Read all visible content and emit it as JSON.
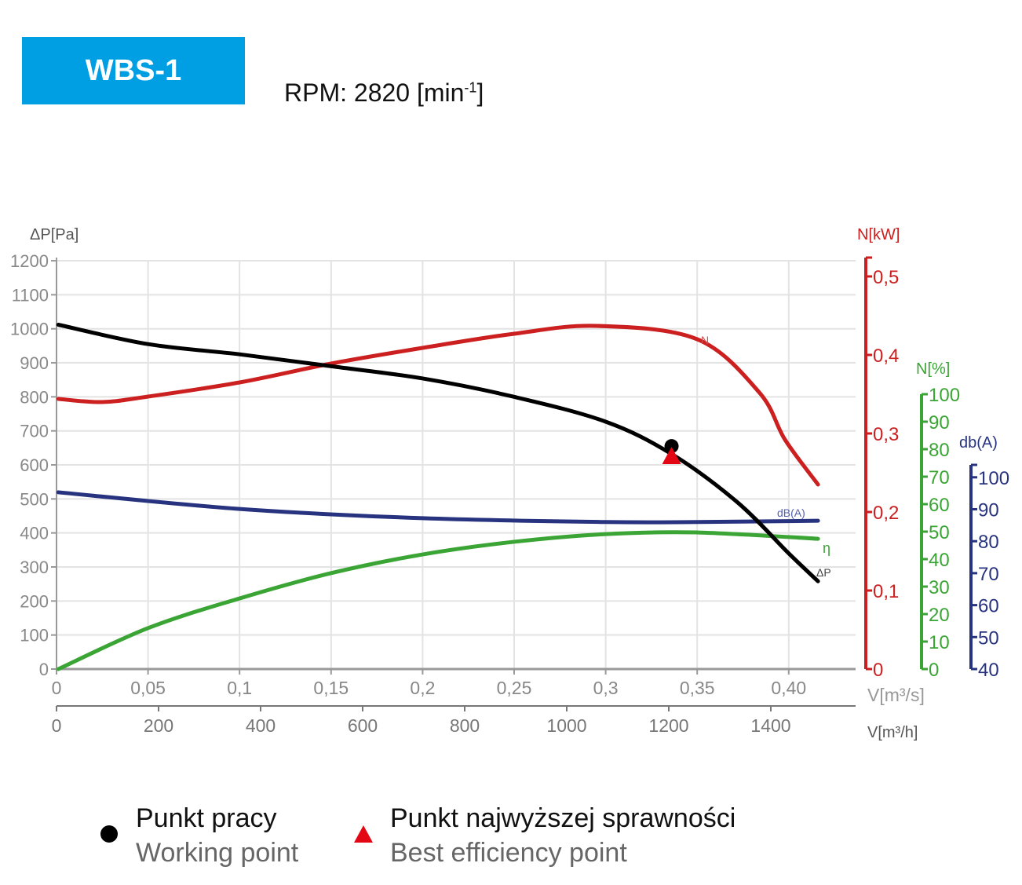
{
  "header": {
    "model": "WBS-1",
    "rpm_label": "RPM: 2820 [min",
    "rpm_sup": "-1",
    "rpm_close": "]"
  },
  "legend": {
    "working_point_pl": "Punkt pracy",
    "working_point_en": "Working point",
    "best_eff_pl": "Punkt najwyższej sprawności",
    "best_eff_en": "Best efficiency point"
  },
  "chart_data": {
    "type": "line",
    "grid": true,
    "x_axes": [
      {
        "label": "V[m³/s]",
        "range": [
          0,
          0.436
        ],
        "ticks": [
          0,
          0.05,
          0.1,
          0.15,
          0.2,
          0.25,
          0.3,
          0.35,
          0.4
        ],
        "tick_labels": [
          "0",
          "0,05",
          "0,1",
          "0,15",
          "0,2",
          "0,25",
          "0,3",
          "0,35",
          "0,40"
        ]
      },
      {
        "label": "V[m³/h]",
        "ticks": [
          0,
          200,
          400,
          600,
          800,
          1000,
          1200,
          1400
        ],
        "tick_labels": [
          "0",
          "200",
          "400",
          "600",
          "800",
          "1000",
          "1200",
          "1400"
        ]
      }
    ],
    "y_axes": [
      {
        "id": "dp",
        "label": "ΔP[Pa]",
        "range": [
          0,
          1200
        ],
        "ticks": [
          0,
          100,
          200,
          300,
          400,
          500,
          600,
          700,
          800,
          900,
          1000,
          1100,
          1200
        ],
        "color": "#555555"
      },
      {
        "id": "kw",
        "label": "N[kW]",
        "range": [
          0,
          0.52
        ],
        "ticks": [
          0,
          0.1,
          0.2,
          0.3,
          0.4,
          0.5
        ],
        "tick_labels": [
          "0",
          "0,1",
          "0,2",
          "0,3",
          "0,4",
          "0,5"
        ],
        "color": "#cc1f1f"
      },
      {
        "id": "pct",
        "label": "N[%]",
        "range": [
          0,
          100
        ],
        "ticks": [
          0,
          10,
          20,
          30,
          40,
          50,
          60,
          70,
          80,
          90,
          100
        ],
        "color": "#3aa535"
      },
      {
        "id": "dba",
        "label": "db(A)",
        "range": [
          40,
          100
        ],
        "ticks": [
          40,
          50,
          60,
          70,
          80,
          90,
          100
        ],
        "color": "#27337f"
      }
    ],
    "series": [
      {
        "name": "ΔP",
        "axis": "dp",
        "color": "#000000",
        "x": [
          0.001,
          0.05,
          0.1,
          0.15,
          0.2,
          0.25,
          0.3,
          0.336,
          0.372,
          0.4,
          0.416
        ],
        "y": [
          1012,
          955,
          925,
          890,
          854,
          800,
          727,
          632,
          490,
          340,
          258
        ]
      },
      {
        "name": "N",
        "axis": "kw",
        "color": "#cc1f1f",
        "x": [
          0.001,
          0.025,
          0.05,
          0.1,
          0.15,
          0.2,
          0.25,
          0.295,
          0.35,
          0.384,
          0.398,
          0.416
        ],
        "y": [
          0.344,
          0.34,
          0.347,
          0.365,
          0.389,
          0.409,
          0.427,
          0.437,
          0.42,
          0.352,
          0.292,
          0.235
        ]
      },
      {
        "name": "dB(A)",
        "axis": "dba",
        "color": "#27337f",
        "x": [
          0.001,
          0.1,
          0.2,
          0.3,
          0.35,
          0.416
        ],
        "y": [
          95.3,
          90.1,
          87.2,
          86.0,
          86.0,
          86.4
        ]
      },
      {
        "name": "η",
        "axis": "pct",
        "color": "#3aa535",
        "x": [
          0.001,
          0.05,
          0.1,
          0.15,
          0.2,
          0.25,
          0.3,
          0.35,
          0.416
        ],
        "y": [
          0,
          14.9,
          25.7,
          34.9,
          41.7,
          46.3,
          49.1,
          49.7,
          47.4
        ]
      }
    ],
    "points": [
      {
        "name": "working-point",
        "x": 0.336,
        "y": 632,
        "axis": "dp",
        "marker": "circle",
        "color": "#000000"
      },
      {
        "name": "best-efficiency-point",
        "x": 0.336,
        "y": 623,
        "axis": "dp",
        "marker": "triangle",
        "color": "#e30613"
      }
    ]
  }
}
